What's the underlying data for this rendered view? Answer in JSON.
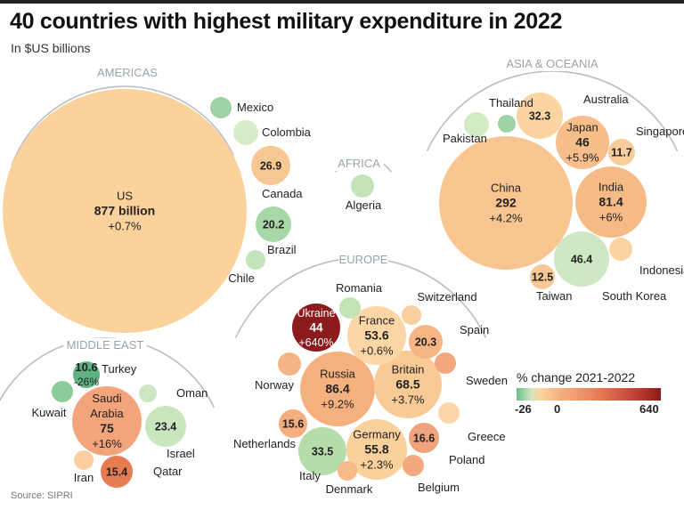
{
  "header": {
    "title": "40 countries with highest military expenditure in 2022",
    "subtitle": "In $US billions"
  },
  "footer": {
    "source": "Source: SIPRI"
  },
  "legend": {
    "title": "% change 2021-2022",
    "min_label": "-26",
    "zero_label": "0",
    "max_label": "640",
    "colors": {
      "negative": "#6dbf8a",
      "neutral": "#fbd5a2",
      "high": "#8b1a1a"
    }
  },
  "chart_data": {
    "type": "bubble",
    "title": "40 countries with highest military expenditure in 2022",
    "subtitle": "In $US billions",
    "color_scale": {
      "label": "% change 2021-2022",
      "min": -26,
      "mid": 0,
      "max": 640
    },
    "regions": [
      {
        "name": "AMERICAS",
        "countries": [
          {
            "name": "US",
            "value": 877,
            "value_label": "877 billion",
            "change_label": "+0.7%",
            "color": "#fbd29c"
          },
          {
            "name": "Mexico",
            "color": "#9fd3a5"
          },
          {
            "name": "Colombia",
            "color": "#d7ecc8"
          },
          {
            "name": "Canada",
            "value": 26.9,
            "value_label": "26.9",
            "color": "#f8c894"
          },
          {
            "name": "Brazil",
            "value": 20.2,
            "value_label": "20.2",
            "color": "#a9d8a8"
          },
          {
            "name": "Chile",
            "color": "#c3e4bb"
          }
        ]
      },
      {
        "name": "AFRICA",
        "countries": [
          {
            "name": "Algeria",
            "color": "#c4e3b7"
          }
        ]
      },
      {
        "name": "ASIA & OCEANIA",
        "countries": [
          {
            "name": "China",
            "value": 292,
            "value_label": "292",
            "change_label": "+4.2%",
            "color": "#f8c591"
          },
          {
            "name": "India",
            "value": 81.4,
            "value_label": "81.4",
            "change_label": "+6%",
            "color": "#f6ba86"
          },
          {
            "name": "South Korea",
            "value": 46.4,
            "value_label": "46.4",
            "color": "#cde8c3"
          },
          {
            "name": "Japan",
            "value": 46,
            "value_label": "46",
            "change_label": "+5.9%",
            "color": "#f7be8b"
          },
          {
            "name": "Australia",
            "value": 32.3,
            "value_label": "32.3",
            "color": "#fbd4a2"
          },
          {
            "name": "Taiwan",
            "value": 12.5,
            "value_label": "12.5",
            "color": "#f8c894"
          },
          {
            "name": "Singapore",
            "value": 11.7,
            "value_label": "11.7",
            "color": "#f9cd9b"
          },
          {
            "name": "Pakistan",
            "color": "#d3eac5"
          },
          {
            "name": "Thailand",
            "color": "#9fd3a5"
          },
          {
            "name": "Indonesia",
            "color": "#fbd4a2"
          }
        ]
      },
      {
        "name": "EUROPE",
        "countries": [
          {
            "name": "Russia",
            "value": 86.4,
            "value_label": "86.4",
            "change_label": "+9.2%",
            "color": "#f4b17f"
          },
          {
            "name": "Britain",
            "value": 68.5,
            "value_label": "68.5",
            "change_label": "+3.7%",
            "color": "#f9ca95"
          },
          {
            "name": "Germany",
            "value": 55.8,
            "value_label": "55.8",
            "change_label": "+2.3%",
            "color": "#fad09c"
          },
          {
            "name": "France",
            "value": 53.6,
            "value_label": "53.6",
            "change_label": "+0.6%",
            "color": "#fcd7a5"
          },
          {
            "name": "Ukraine",
            "value": 44,
            "value_label": "44",
            "change_label": "+640%",
            "color": "#8e1b1b"
          },
          {
            "name": "Italy",
            "value": 33.5,
            "value_label": "33.5",
            "color": "#b5dca9"
          },
          {
            "name": "Spain",
            "value": 20.3,
            "value_label": "20.3",
            "color": "#f5b584"
          },
          {
            "name": "Poland",
            "value": 16.6,
            "value_label": "16.6",
            "color": "#f0a27a"
          },
          {
            "name": "Netherlands",
            "value": 15.6,
            "value_label": "15.6",
            "color": "#f4ae80"
          },
          {
            "name": "Norway",
            "color": "#f5b485"
          },
          {
            "name": "Romania",
            "color": "#c1e3b5"
          },
          {
            "name": "Switzerland",
            "color": "#fad09e"
          },
          {
            "name": "Sweden",
            "color": "#f2a77c"
          },
          {
            "name": "Greece",
            "color": "#fbd6a6"
          },
          {
            "name": "Denmark",
            "color": "#f6b98a"
          },
          {
            "name": "Belgium",
            "color": "#f3a87d"
          }
        ]
      },
      {
        "name": "MIDDLE EAST",
        "countries": [
          {
            "name": "Saudi Arabia",
            "value": 75,
            "value_label": "75",
            "change_label": "+16%",
            "color": "#f2a57b"
          },
          {
            "name": "Israel",
            "value": 23.4,
            "value_label": "23.4",
            "color": "#c9e6bf"
          },
          {
            "name": "Qatar",
            "value": 15.4,
            "value_label": "15.4",
            "color": "#e77b52"
          },
          {
            "name": "Turkey",
            "value": 10.6,
            "value_label": "10.6",
            "change_label": "-26%",
            "color": "#5fb383"
          },
          {
            "name": "Kuwait",
            "color": "#8ccb9a"
          },
          {
            "name": "Oman",
            "color": "#cde7c2"
          },
          {
            "name": "Iran",
            "color": "#fbcf9e"
          }
        ]
      }
    ]
  }
}
